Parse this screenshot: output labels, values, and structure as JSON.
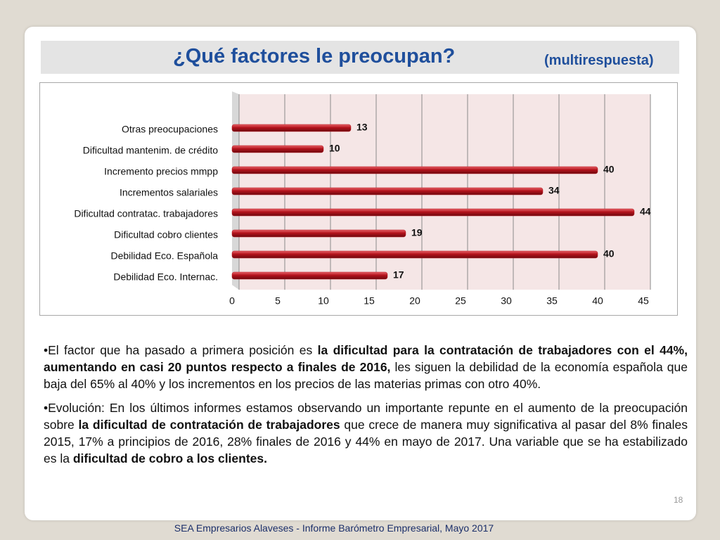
{
  "slide": {
    "title": "¿Qué factores le preocupan?",
    "subtitle": "(multirespuesta)",
    "paragraphs": [
      [
        {
          "text": "•El factor que ha pasado a primera posición es ",
          "bold": false
        },
        {
          "text": "la dificultad para la contratación de trabajadores con el 44%, aumentando en casi 20 puntos respecto a finales de 2016,",
          "bold": true
        },
        {
          "text": " les siguen la debilidad de la economía española que baja del 65% al 40% y los incrementos en los precios de las materias primas con otro 40%.",
          "bold": false
        }
      ],
      [
        {
          "text": "•Evolución: En los últimos informes estamos observando un importante repunte en el aumento de la preocupación sobre ",
          "bold": false
        },
        {
          "text": "la dificultad de contratación de trabajadores",
          "bold": true
        },
        {
          "text": " que crece de manera muy significativa al pasar del 8% finales 2015, 17% a principios de 2016, 28% finales de 2016 y 44% en mayo de 2017. Una variable que se ha estabilizado es la ",
          "bold": false
        },
        {
          "text": "dificultad de cobro a los clientes.",
          "bold": true
        }
      ]
    ],
    "page_number": "18",
    "footer": "SEA Empresarios Alaveses  -  Informe Barómetro Empresarial, Mayo 2017"
  },
  "chart_data": {
    "type": "bar",
    "orientation": "horizontal",
    "categories": [
      "Otras preocupaciones",
      "Dificultad mantenim. de crédito",
      "Incremento precios mmpp",
      "Incrementos salariales",
      "Dificultad contratac. trabajadores",
      "Dificultad cobro clientes",
      "Debilidad Eco. Española",
      "Debilidad Eco. Internac."
    ],
    "values": [
      13,
      10,
      40,
      34,
      44,
      19,
      40,
      17
    ],
    "color": "#b3121b",
    "xlim": [
      0,
      45
    ],
    "xticks": [
      0,
      5,
      10,
      15,
      20,
      25,
      30,
      35,
      40,
      45
    ],
    "grid": true
  }
}
